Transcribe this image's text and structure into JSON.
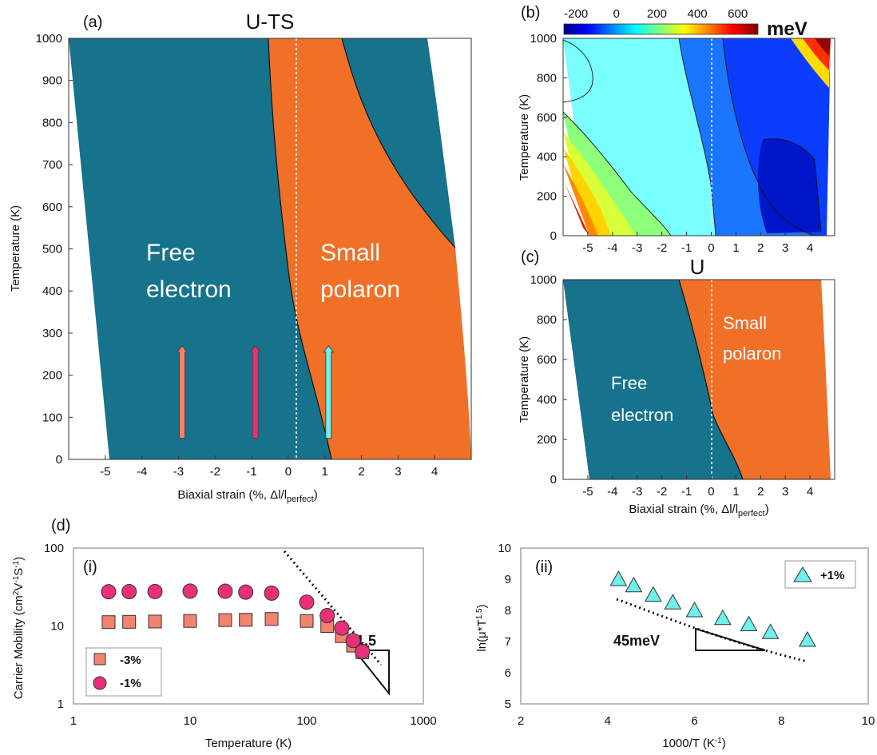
{
  "chart_data": [
    {
      "panel": "(a)",
      "type": "area",
      "title": "U-TS",
      "xlabel_main": "Biaxial strain (%, Δl/l",
      "xlabel_sub": "perfect",
      "xlabel_close": ")",
      "ylabel": "Temperature (K)",
      "xlim": [
        -6,
        5
      ],
      "ylim": [
        0,
        1000
      ],
      "xticks": [
        "-5",
        "-4",
        "-3",
        "-2",
        "-1",
        "0",
        "1",
        "2",
        "3",
        "4"
      ],
      "yticks": [
        "0",
        "100",
        "200",
        "300",
        "400",
        "500",
        "600",
        "700",
        "800",
        "900",
        "1000"
      ],
      "regions": [
        {
          "name": "Free electron",
          "color": "#17728c",
          "line1": "Free",
          "line2": "electron"
        },
        {
          "name": "Small polaron",
          "color": "#f07028",
          "line1": "Small",
          "line2": "polaron"
        }
      ],
      "boundary_left": [
        [
          -6,
          1000
        ],
        [
          -5.17,
          0
        ]
      ],
      "boundary_free_polaron": [
        [
          -0.92,
          1000
        ],
        [
          -0.75,
          800
        ],
        [
          -0.55,
          600
        ],
        [
          -0.28,
          450
        ],
        [
          0.2,
          300
        ],
        [
          0.7,
          150
        ],
        [
          1.17,
          0
        ]
      ],
      "boundary_right_polaron": [
        [
          1.35,
          1000
        ],
        [
          1.7,
          800
        ],
        [
          2.6,
          650
        ],
        [
          4.4,
          510
        ]
      ],
      "boundary_right": [
        [
          4.9,
          1000
        ],
        [
          4.7,
          500
        ],
        [
          4.8,
          0
        ]
      ],
      "arrows": [
        {
          "strain": -2.9,
          "color": "#f4836e",
          "from": 50,
          "to": 270
        },
        {
          "strain": -0.9,
          "color": "#e8307a",
          "from": 50,
          "to": 270
        },
        {
          "strain": 1.1,
          "color": "#6ff0ea",
          "from": 50,
          "to": 270
        }
      ],
      "zero_line": 0
    },
    {
      "panel": "(b)",
      "type": "heatmap",
      "ylabel": "Temperature (K)",
      "colorbar_ticks": [
        "-200",
        "0",
        "200",
        "400",
        "600"
      ],
      "colorbar_unit": "meV",
      "colorbar_range": [
        -260,
        700
      ],
      "xlim": [
        -6,
        5
      ],
      "ylim": [
        0,
        1000
      ],
      "xticks": [
        "-5",
        "-4",
        "-3",
        "-2",
        "-1",
        "0",
        "1",
        "2",
        "3",
        "4"
      ],
      "yticks": [
        "0",
        "200",
        "400",
        "600",
        "800",
        "1000"
      ]
    },
    {
      "panel": "(c)",
      "type": "area",
      "title": "U",
      "xlabel_main": "Biaxial strain (%, Δl/l",
      "xlabel_sub": "perfect",
      "xlabel_close": ")",
      "ylabel": "Temperature (K)",
      "xlim": [
        -6,
        5
      ],
      "ylim": [
        0,
        1000
      ],
      "xticks": [
        "-5",
        "-4",
        "-3",
        "-2",
        "-1",
        "0",
        "1",
        "2",
        "3",
        "4"
      ],
      "yticks": [
        "0",
        "200",
        "400",
        "600",
        "800",
        "1000"
      ],
      "regions": [
        {
          "name": "Free electron",
          "color": "#17728c",
          "line1": "Free",
          "line2": "electron"
        },
        {
          "name": "Small polaron",
          "color": "#f07028",
          "line1": "Small",
          "line2": "polaron"
        }
      ]
    },
    {
      "panel": "(d)(i)",
      "type": "scatter",
      "xlabel": "Temperature (K)",
      "ylabel_main": "Carrier Mobility (cm",
      "ylabel_rest": "V",
      "ylabel_end": "S",
      "ylabel_sup1": "2",
      "ylabel_sup2": "-1",
      "ylabel_sup3": "-1",
      "ylabel_close": ")",
      "xscale": "log",
      "yscale": "log",
      "xlim": [
        1,
        1000
      ],
      "ylim": [
        1,
        100
      ],
      "xticks": [
        "1",
        "10",
        "100",
        "1000"
      ],
      "yticks": [
        "1",
        "10",
        "100"
      ],
      "slope_label": "-1.5",
      "series": [
        {
          "name": "-3%",
          "marker": "square",
          "color": "#f4836e",
          "x": [
            2,
            3,
            5,
            10,
            20,
            30,
            50,
            100,
            150,
            200,
            250,
            300
          ],
          "y": [
            11.2,
            11.3,
            11.4,
            11.6,
            11.9,
            12.0,
            12.3,
            11.6,
            10.0,
            7.4,
            5.6,
            4.6
          ]
        },
        {
          "name": "-1%",
          "marker": "circle",
          "color": "#e8307a",
          "x": [
            2,
            3,
            5,
            10,
            20,
            30,
            50,
            100,
            150,
            200,
            250,
            300
          ],
          "y": [
            27.5,
            27.6,
            27.7,
            28.0,
            27.9,
            27.2,
            26.4,
            20.2,
            13.6,
            9.4,
            6.5,
            4.7
          ]
        }
      ]
    },
    {
      "panel": "(d)(ii)",
      "type": "scatter",
      "xlabel_main": "1000/T (K",
      "xlabel_sup": "-1",
      "xlabel_close": ")",
      "ylabel_main": "ln(μ*T",
      "ylabel_sup": "1.5",
      "ylabel_close": ")",
      "xlim": [
        2,
        10
      ],
      "ylim": [
        5,
        10
      ],
      "xticks": [
        "2",
        "4",
        "6",
        "8",
        "10"
      ],
      "yticks": [
        "5",
        "6",
        "7",
        "8",
        "9",
        "10"
      ],
      "slope_label": "45meV",
      "series": [
        {
          "name": "+1%",
          "marker": "triangle",
          "color": "#6ff0ea",
          "x": [
            4.25,
            4.6,
            5.05,
            5.5,
            6.0,
            6.65,
            7.25,
            7.75,
            8.6
          ],
          "y": [
            9.0,
            8.8,
            8.5,
            8.25,
            8.0,
            7.75,
            7.55,
            7.3,
            7.05
          ]
        }
      ]
    }
  ],
  "labels": {
    "panel_a": "(a)",
    "panel_b": "(b)",
    "panel_c": "(c)",
    "panel_d": "(d)",
    "sub_i": "(i)",
    "sub_ii": "(ii)"
  }
}
